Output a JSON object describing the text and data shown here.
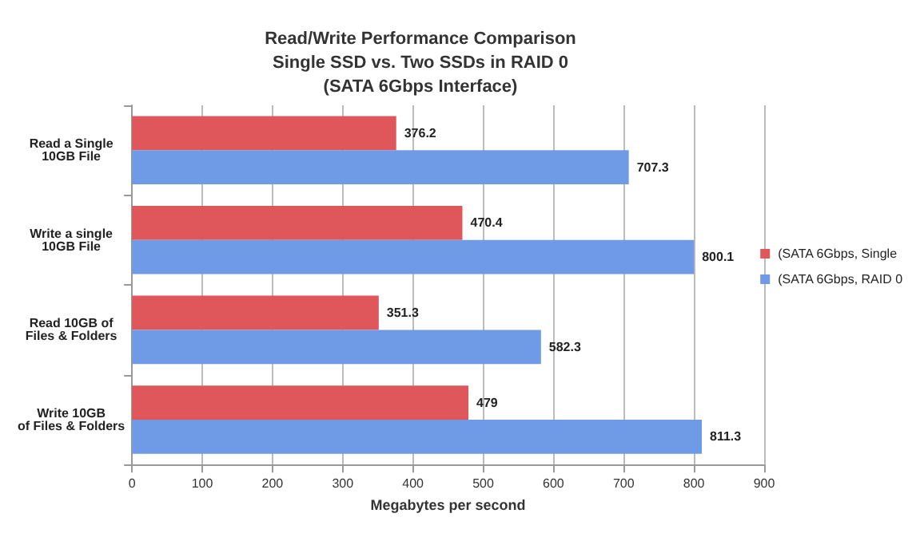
{
  "chart_data": {
    "type": "bar",
    "orientation": "horizontal",
    "title": "Read/Write Performance Comparison\nSingle SSD vs. Two SSDs in RAID 0\n(SATA 6Gbps Interface)",
    "xlabel": "Megabytes per second",
    "categories": [
      "Read a Single\n10GB File",
      "Write a single\n10GB File",
      "Read 10GB of\nFiles & Folders",
      "Write 10GB\nof Files & Folders"
    ],
    "series": [
      {
        "name": "(SATA 6Gbps, Single",
        "color": "#e0575b",
        "values": [
          376.2,
          470.4,
          351.3,
          479
        ]
      },
      {
        "name": "(SATA 6Gbps, RAID 0",
        "color": "#6f9be6",
        "values": [
          707.3,
          800.1,
          582.3,
          811.3
        ]
      }
    ],
    "xlim": [
      0,
      900
    ],
    "xticks": [
      0,
      100,
      200,
      300,
      400,
      500,
      600,
      700,
      800,
      900
    ],
    "grid": "x",
    "legend": "right",
    "data_labels": true
  }
}
